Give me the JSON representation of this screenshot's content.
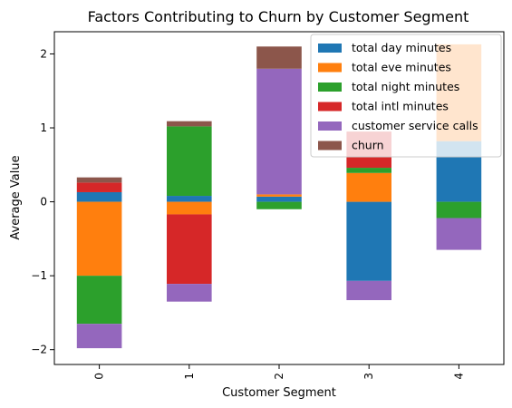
{
  "chart_data": {
    "type": "bar",
    "stacked": true,
    "title": "Factors Contributing to Churn by Customer Segment",
    "xlabel": "Customer Segment",
    "ylabel": "Average Value",
    "categories": [
      "0",
      "1",
      "2",
      "3",
      "4"
    ],
    "ylim": [
      -2.2,
      2.3
    ],
    "yticks": [
      -2,
      -1,
      0,
      1,
      2
    ],
    "ytick_labels": [
      "−2",
      "−1",
      "0",
      "1",
      "2"
    ],
    "grid": false,
    "legend_position": "top-right",
    "series": [
      {
        "name": "total day minutes",
        "color": "#1f77b4",
        "values": [
          0.13,
          0.08,
          0.07,
          -1.07,
          0.82
        ]
      },
      {
        "name": "total eve minutes",
        "color": "#ff7f0e",
        "values": [
          -1.0,
          -0.17,
          0.03,
          0.39,
          1.31
        ]
      },
      {
        "name": "total night minutes",
        "color": "#2ca02c",
        "values": [
          -0.65,
          0.94,
          -0.1,
          0.07,
          -0.22
        ]
      },
      {
        "name": "total intl minutes",
        "color": "#d62728",
        "values": [
          0.13,
          -0.94,
          0.0,
          0.49,
          0.0
        ]
      },
      {
        "name": "customer service calls",
        "color": "#9467bd",
        "values": [
          -0.33,
          -0.24,
          1.7,
          -0.26,
          -0.43
        ]
      },
      {
        "name": "churn",
        "color": "#8c564b",
        "values": [
          0.07,
          0.07,
          0.3,
          0.0,
          0.0
        ]
      }
    ]
  }
}
